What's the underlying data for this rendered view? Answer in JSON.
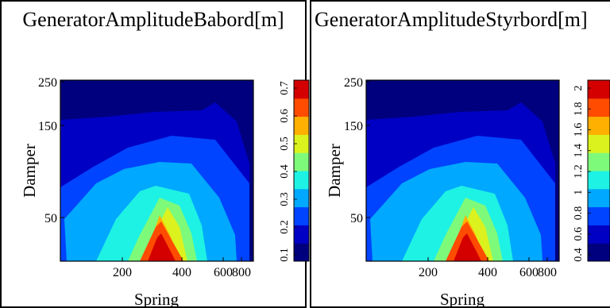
{
  "chart_data": [
    {
      "type": "contour",
      "title": "GeneratorAmplitudeBabord[m]",
      "xlabel": "Spring",
      "ylabel": "Damper",
      "x_ticks": [
        "200",
        "400",
        "600",
        "800"
      ],
      "y_ticks": [
        "250",
        "150",
        "50"
      ],
      "colorbar_ticks": [
        "0.1",
        "0.2",
        "0.3",
        "0.4",
        "0.5",
        "0.6",
        "0.7"
      ],
      "colormap": [
        "#00007f",
        "#0000c4",
        "#0044ff",
        "#00a8ff",
        "#1ef2e4",
        "#7efa7a",
        "#dcf21e",
        "#ffb000",
        "#ff4c00",
        "#d40000"
      ],
      "peak": {
        "spring": 300,
        "damper": 0
      }
    },
    {
      "type": "contour",
      "title": "GeneratorAmplitudeStyrbord[m]",
      "xlabel": "Spring",
      "ylabel": "Damper",
      "x_ticks": [
        "200",
        "400",
        "600",
        "800"
      ],
      "y_ticks": [
        "250",
        "150",
        "50"
      ],
      "colorbar_ticks": [
        "0.4",
        "0.6",
        "0.8",
        "1",
        "1.2",
        "1.4",
        "1.6",
        "1.8",
        "2"
      ],
      "colormap": [
        "#00007f",
        "#0000c4",
        "#0044ff",
        "#00a8ff",
        "#1ef2e4",
        "#7efa7a",
        "#dcf21e",
        "#ffb000",
        "#ff4c00",
        "#d40000"
      ],
      "peak": {
        "spring": 300,
        "damper": 0
      }
    }
  ]
}
